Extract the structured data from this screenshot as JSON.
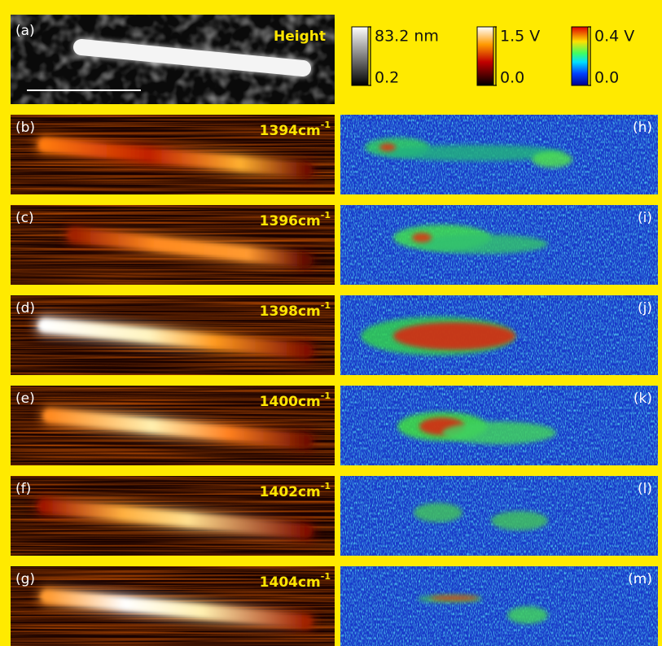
{
  "panel_a": {
    "label": "(a)",
    "title": "Height"
  },
  "colorbars": [
    {
      "max": "83.2 nm",
      "min": "0.2"
    },
    {
      "max": "1.5 V",
      "min": "0.0"
    },
    {
      "max": "0.4 V",
      "min": "0.0"
    }
  ],
  "left_panels": [
    {
      "label": "(b)",
      "wavenumber": "1394cm",
      "exponent": "-1"
    },
    {
      "label": "(c)",
      "wavenumber": "1396cm",
      "exponent": "-1"
    },
    {
      "label": "(d)",
      "wavenumber": "1398cm",
      "exponent": "-1"
    },
    {
      "label": "(e)",
      "wavenumber": "1400cm",
      "exponent": "-1"
    },
    {
      "label": "(f)",
      "wavenumber": "1402cm",
      "exponent": "-1"
    },
    {
      "label": "(g)",
      "wavenumber": "1404cm",
      "exponent": "-1"
    }
  ],
  "right_panels": [
    {
      "label": "(h)"
    },
    {
      "label": "(i)"
    },
    {
      "label": "(j)"
    },
    {
      "label": "(k)"
    },
    {
      "label": "(l)"
    },
    {
      "label": "(m)"
    }
  ]
}
